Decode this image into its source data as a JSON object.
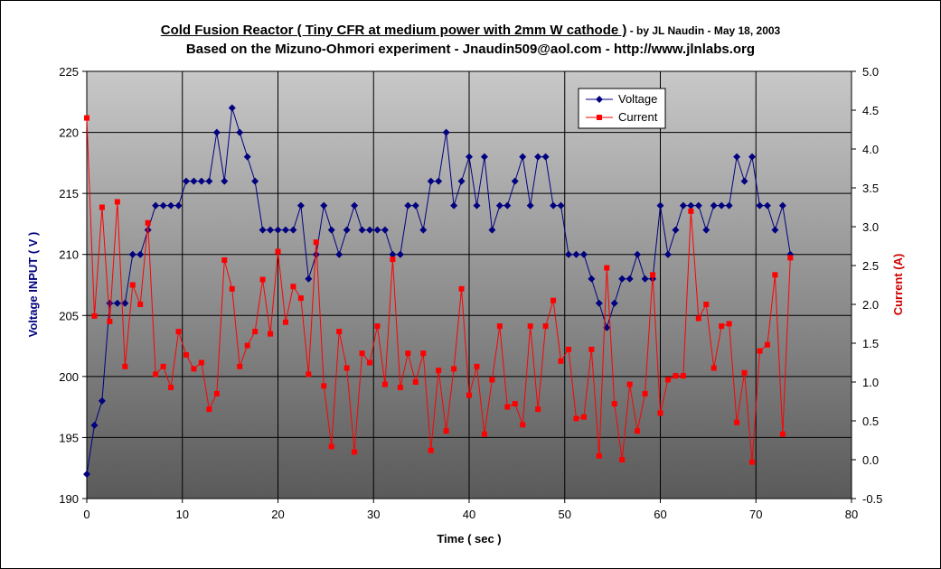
{
  "chart_data": {
    "type": "line",
    "title": "Cold Fusion Reactor ( Tiny CFR at medium power with 2mm W cathode )",
    "title_suffix": " - by JL Naudin - May 18, 2003",
    "subtitle": "Based on the Mizuno-Ohmori experiment - Jnaudin509@aol.com - http://www.jlnlabs.org",
    "xlabel": "Time ( sec )",
    "ylabel_left": "Voltage INPUT ( V )",
    "ylabel_right": "Current (A)",
    "xlim": [
      0,
      80
    ],
    "x_ticks": [
      "0",
      "10",
      "20",
      "30",
      "40",
      "50",
      "60",
      "70",
      "80"
    ],
    "ylim_left": [
      190,
      225
    ],
    "y_ticks_left": [
      "190",
      "195",
      "200",
      "205",
      "210",
      "215",
      "220",
      "225"
    ],
    "ylim_right": [
      -0.5,
      5.0
    ],
    "y_ticks_right": [
      "-0.5",
      "0.0",
      "0.5",
      "1.0",
      "1.5",
      "2.0",
      "2.5",
      "3.0",
      "3.5",
      "4.0",
      "4.5",
      "5.0"
    ],
    "grid": true,
    "legend_position": "top-center",
    "series": [
      {
        "name": "Voltage",
        "axis": "left",
        "color": "#000080",
        "marker": "diamond",
        "x": [
          0,
          0.8,
          1.6,
          2.4,
          3.2,
          4.0,
          4.8,
          5.6,
          6.4,
          7.2,
          8.0,
          8.8,
          9.6,
          10.4,
          11.2,
          12.0,
          12.8,
          13.6,
          14.4,
          15.2,
          16.0,
          16.8,
          17.6,
          18.4,
          19.2,
          20.0,
          20.8,
          21.6,
          22.4,
          23.2,
          24.0,
          24.8,
          25.6,
          26.4,
          27.2,
          28.0,
          28.8,
          29.6,
          30.4,
          31.2,
          32.0,
          32.8,
          33.6,
          34.4,
          35.2,
          36.0,
          36.8,
          37.6,
          38.4,
          39.2,
          40.0,
          40.8,
          41.6,
          42.4,
          43.2,
          44.0,
          44.8,
          45.6,
          46.4,
          47.2,
          48.0,
          48.8,
          49.6,
          50.4,
          51.2,
          52.0,
          52.8,
          53.6,
          54.4,
          55.2,
          56.0,
          56.8,
          57.6,
          58.4,
          59.2,
          60.0,
          60.8,
          61.6,
          62.4,
          63.2,
          64.0,
          64.8,
          65.6,
          66.4,
          67.2,
          68.0,
          68.8,
          69.6,
          70.4,
          71.2,
          72.0,
          72.8,
          73.6
        ],
        "values": [
          192,
          196,
          198,
          206,
          206,
          206,
          210,
          210,
          212,
          214,
          214,
          214,
          214,
          216,
          216,
          216,
          216,
          220,
          216,
          222,
          220,
          218,
          216,
          212,
          212,
          212,
          212,
          212,
          214,
          208,
          210,
          214,
          212,
          210,
          212,
          214,
          212,
          212,
          212,
          212,
          210,
          210,
          214,
          214,
          212,
          216,
          216,
          220,
          214,
          216,
          218,
          214,
          218,
          212,
          214,
          214,
          216,
          218,
          214,
          218,
          218,
          214,
          214,
          210,
          210,
          210,
          208,
          206,
          204,
          206,
          208,
          208,
          210,
          208,
          208,
          214,
          210,
          212,
          214,
          214,
          214,
          212,
          214,
          214,
          214,
          218,
          216,
          218,
          214,
          214,
          212,
          214,
          210
        ]
      },
      {
        "name": "Current",
        "axis": "right",
        "color": "#ff0000",
        "marker": "square",
        "x": [
          0,
          0.8,
          1.6,
          2.4,
          3.2,
          4.0,
          4.8,
          5.6,
          6.4,
          7.2,
          8.0,
          8.8,
          9.6,
          10.4,
          11.2,
          12.0,
          12.8,
          13.6,
          14.4,
          15.2,
          16.0,
          16.8,
          17.6,
          18.4,
          19.2,
          20.0,
          20.8,
          21.6,
          22.4,
          23.2,
          24.0,
          24.8,
          25.6,
          26.4,
          27.2,
          28.0,
          28.8,
          29.6,
          30.4,
          31.2,
          32.0,
          32.8,
          33.6,
          34.4,
          35.2,
          36.0,
          36.8,
          37.6,
          38.4,
          39.2,
          40.0,
          40.8,
          41.6,
          42.4,
          43.2,
          44.0,
          44.8,
          45.6,
          46.4,
          47.2,
          48.0,
          48.8,
          49.6,
          50.4,
          51.2,
          52.0,
          52.8,
          53.6,
          54.4,
          55.2,
          56.0,
          56.8,
          57.6,
          58.4,
          59.2,
          60.0,
          60.8,
          61.6,
          62.4,
          63.2,
          64.0,
          64.8,
          65.6,
          66.4,
          67.2,
          68.0,
          68.8,
          69.6,
          70.4,
          71.2,
          72.0,
          72.8,
          73.6
        ],
        "values": [
          4.4,
          1.85,
          3.25,
          1.78,
          3.32,
          1.2,
          2.25,
          2.0,
          3.05,
          1.1,
          1.2,
          0.93,
          1.65,
          1.35,
          1.17,
          1.25,
          0.65,
          0.85,
          2.57,
          2.2,
          1.2,
          1.47,
          1.65,
          2.32,
          1.62,
          2.68,
          1.77,
          2.23,
          2.08,
          1.1,
          2.8,
          0.95,
          0.17,
          1.65,
          1.18,
          0.1,
          1.37,
          1.25,
          1.72,
          0.97,
          2.58,
          0.93,
          1.37,
          1.0,
          1.37,
          0.12,
          1.15,
          0.37,
          1.17,
          2.2,
          0.83,
          1.2,
          0.33,
          1.03,
          1.72,
          0.68,
          0.72,
          0.45,
          1.72,
          0.65,
          1.72,
          2.05,
          1.27,
          1.42,
          0.53,
          0.55,
          1.42,
          0.05,
          2.47,
          0.72,
          0.0,
          0.97,
          0.37,
          0.85,
          2.38,
          0.6,
          1.03,
          1.08,
          1.08,
          3.2,
          1.82,
          2.0,
          1.18,
          1.72,
          1.75,
          0.48,
          1.12,
          -0.03,
          1.4,
          1.48,
          2.38,
          0.33,
          2.6
        ]
      }
    ]
  }
}
